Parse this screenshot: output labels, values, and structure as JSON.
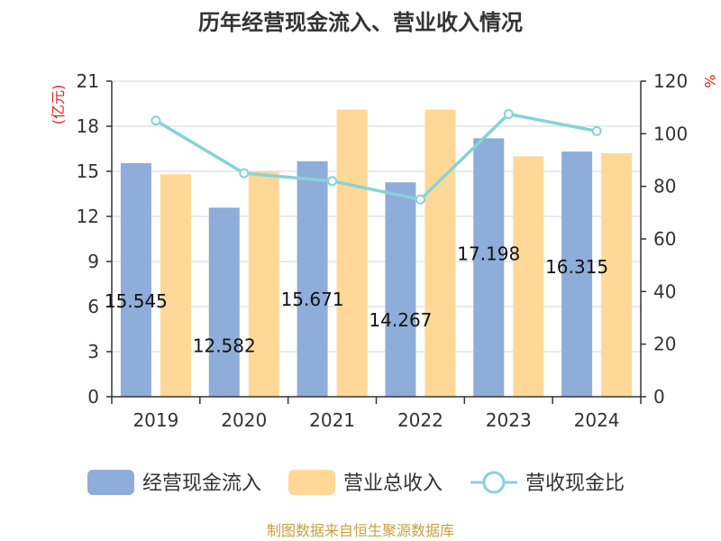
{
  "chart_data": {
    "type": "bar",
    "title": "历年经营现金流入、营业收入情况",
    "categories": [
      "2019",
      "2020",
      "2021",
      "2022",
      "2023",
      "2024"
    ],
    "left_axis": {
      "unit": "(亿元)",
      "ylim": [
        0,
        21
      ],
      "ticks": [
        "0",
        "3",
        "6",
        "9",
        "12",
        "15",
        "18",
        "21"
      ]
    },
    "right_axis": {
      "unit": "%",
      "ylim": [
        0,
        120
      ],
      "ticks": [
        "0",
        "20",
        "40",
        "60",
        "80",
        "100",
        "120"
      ]
    },
    "series": [
      {
        "name": "经营现金流入",
        "type": "bar",
        "axis": "left",
        "color": "#8eadd9",
        "values": [
          15.545,
          12.582,
          15.671,
          14.267,
          17.198,
          16.315
        ],
        "labels": [
          "15.545",
          "12.582",
          "15.671",
          "14.267",
          "17.198",
          "16.315"
        ]
      },
      {
        "name": "营业总收入",
        "type": "bar",
        "axis": "left",
        "color": "#ffd898",
        "values": [
          14.8,
          15.0,
          19.1,
          19.1,
          16.0,
          16.2
        ]
      },
      {
        "name": "营收现金比",
        "type": "line",
        "axis": "right",
        "color": "#86d3d8",
        "values": [
          105.0,
          85.0,
          82.0,
          75.0,
          107.5,
          101.0
        ]
      }
    ],
    "grid": true,
    "legend_position": "bottom"
  },
  "source": "制图数据来自恒生聚源数据库"
}
